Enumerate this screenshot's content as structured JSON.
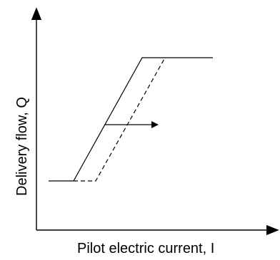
{
  "x_axis_label": "Pilot electric current, I",
  "y_axis_label": "Delivery flow, Q",
  "colors": {
    "line": "#000000",
    "background": "#ffffff"
  }
}
